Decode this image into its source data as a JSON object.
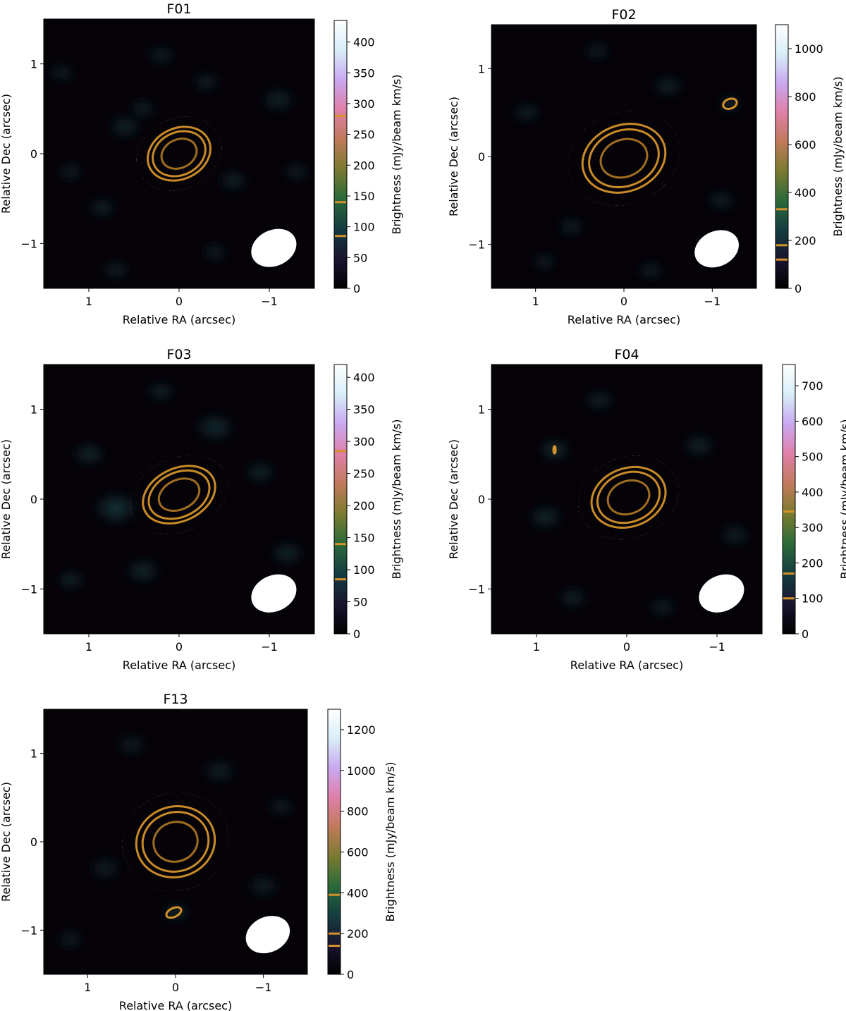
{
  "figure": {
    "xlabel": "Relative RA (arcsec)",
    "ylabel": "Relative Dec (arcsec)",
    "cbar_label": "Brightness (mJy/beam km/s)",
    "colormap": [
      "#000000",
      "#1a1530",
      "#143d40",
      "#2a6a3a",
      "#7a7a30",
      "#c07a5a",
      "#e07fa8",
      "#c9a8f0",
      "#d8eef8",
      "#ffffff"
    ],
    "contour_color": "#d4922a",
    "beam_color": "#ffffff"
  },
  "chart_data": [
    {
      "type": "heatmap",
      "title": "F01",
      "xlim": [
        1.5,
        -1.5
      ],
      "ylim": [
        -1.5,
        1.5
      ],
      "xticks": [
        1,
        0,
        -1
      ],
      "xtick_labels": [
        "1",
        "0",
        "−1"
      ],
      "yticks": [
        1,
        0,
        -1
      ],
      "ytick_labels": [
        "1",
        "0",
        "−1"
      ],
      "cbar_range": [
        0,
        435
      ],
      "cbar_ticks": [
        0,
        50,
        100,
        150,
        200,
        250,
        300,
        350,
        400
      ],
      "cbar_tick_labels": [
        "0",
        "50",
        "100",
        "150",
        "200",
        "250",
        "300",
        "350",
        "400"
      ],
      "contour_levels": [
        85,
        140,
        280
      ],
      "peak": 430,
      "source": {
        "x": 0.0,
        "y": 0.0,
        "a": 0.36,
        "b": 0.27,
        "pa": 25
      },
      "beam": {
        "x": -1.05,
        "y": -1.05,
        "a": 0.26,
        "b": 0.2,
        "pa": 25
      },
      "blobs": [
        [
          0.6,
          0.3,
          0.15,
          35
        ],
        [
          -0.6,
          -0.3,
          0.14,
          30
        ],
        [
          0.85,
          -0.6,
          0.13,
          32
        ],
        [
          -1.1,
          0.6,
          0.16,
          25
        ],
        [
          0.2,
          1.1,
          0.13,
          22
        ],
        [
          -0.3,
          0.8,
          0.13,
          20
        ],
        [
          1.3,
          0.9,
          0.12,
          18
        ],
        [
          0.7,
          -1.3,
          0.13,
          18
        ],
        [
          -1.3,
          -0.2,
          0.12,
          20
        ],
        [
          0.4,
          0.5,
          0.12,
          30
        ],
        [
          -0.4,
          -1.1,
          0.12,
          18
        ],
        [
          1.2,
          -0.2,
          0.12,
          20
        ]
      ],
      "extra_contours": []
    },
    {
      "type": "heatmap",
      "title": "F02",
      "xlim": [
        1.5,
        -1.5
      ],
      "ylim": [
        -1.5,
        1.5
      ],
      "xticks": [
        1,
        0,
        -1
      ],
      "xtick_labels": [
        "1",
        "0",
        "−1"
      ],
      "yticks": [
        1,
        0,
        -1
      ],
      "ytick_labels": [
        "1",
        "0",
        "−1"
      ],
      "cbar_range": [
        0,
        1100
      ],
      "cbar_ticks": [
        0,
        200,
        400,
        600,
        800,
        1000
      ],
      "cbar_tick_labels": [
        "0",
        "200",
        "400",
        "600",
        "800",
        "1000"
      ],
      "contour_levels": [
        120,
        180,
        330
      ],
      "peak": 1100,
      "source": {
        "x": 0.0,
        "y": -0.02,
        "a": 0.48,
        "b": 0.36,
        "pa": 20
      },
      "beam": {
        "x": -1.05,
        "y": -1.05,
        "a": 0.26,
        "b": 0.2,
        "pa": 25
      },
      "blobs": [
        [
          -1.2,
          0.6,
          0.11,
          150
        ],
        [
          0.6,
          -0.8,
          0.13,
          60
        ],
        [
          -0.5,
          0.8,
          0.15,
          60
        ],
        [
          1.1,
          0.5,
          0.14,
          55
        ],
        [
          -1.1,
          -0.5,
          0.14,
          55
        ],
        [
          0.3,
          1.2,
          0.13,
          45
        ],
        [
          0.9,
          -1.2,
          0.12,
          40
        ],
        [
          -0.3,
          -1.3,
          0.13,
          40
        ]
      ],
      "extra_contours": [
        {
          "x": -1.2,
          "y": 0.6,
          "a": 0.08,
          "b": 0.055,
          "pa": 20
        }
      ]
    },
    {
      "type": "heatmap",
      "title": "F03",
      "xlim": [
        1.5,
        -1.5
      ],
      "ylim": [
        -1.5,
        1.5
      ],
      "xticks": [
        1,
        0,
        -1
      ],
      "xtick_labels": [
        "1",
        "0",
        "−1"
      ],
      "yticks": [
        1,
        0,
        -1
      ],
      "ytick_labels": [
        "1",
        "0",
        "−1"
      ],
      "cbar_range": [
        0,
        420
      ],
      "cbar_ticks": [
        0,
        50,
        100,
        150,
        200,
        250,
        300,
        350,
        400
      ],
      "cbar_tick_labels": [
        "0",
        "50",
        "100",
        "150",
        "200",
        "250",
        "300",
        "350",
        "400"
      ],
      "contour_levels": [
        85,
        140,
        285
      ],
      "peak": 420,
      "source": {
        "x": 0.0,
        "y": 0.05,
        "a": 0.42,
        "b": 0.28,
        "pa": 25
      },
      "beam": {
        "x": -1.05,
        "y": -1.05,
        "a": 0.26,
        "b": 0.2,
        "pa": 25
      },
      "blobs": [
        [
          0.7,
          -0.1,
          0.2,
          75
        ],
        [
          -0.4,
          0.8,
          0.18,
          45
        ],
        [
          1.0,
          0.5,
          0.15,
          40
        ],
        [
          -1.2,
          -0.6,
          0.15,
          40
        ],
        [
          0.4,
          -0.8,
          0.16,
          40
        ],
        [
          -0.9,
          0.3,
          0.14,
          35
        ],
        [
          1.2,
          -0.9,
          0.13,
          30
        ],
        [
          0.2,
          1.2,
          0.13,
          30
        ]
      ],
      "extra_contours": []
    },
    {
      "type": "heatmap",
      "title": "F04",
      "xlim": [
        1.5,
        -1.5
      ],
      "ylim": [
        -1.5,
        1.5
      ],
      "xticks": [
        1,
        0,
        -1
      ],
      "xtick_labels": [
        "1",
        "0",
        "−1"
      ],
      "yticks": [
        1,
        0,
        -1
      ],
      "ytick_labels": [
        "1",
        "0",
        "−1"
      ],
      "cbar_range": [
        0,
        760
      ],
      "cbar_ticks": [
        0,
        100,
        200,
        300,
        400,
        500,
        600,
        700
      ],
      "cbar_tick_labels": [
        "0",
        "100",
        "200",
        "300",
        "400",
        "500",
        "600",
        "700"
      ],
      "contour_levels": [
        100,
        170,
        345
      ],
      "peak": 760,
      "source": {
        "x": -0.02,
        "y": 0.02,
        "a": 0.42,
        "b": 0.31,
        "pa": 20
      },
      "beam": {
        "x": -1.05,
        "y": -1.05,
        "a": 0.26,
        "b": 0.2,
        "pa": 25
      },
      "blobs": [
        [
          0.8,
          0.55,
          0.14,
          110
        ],
        [
          0.9,
          -0.2,
          0.16,
          70
        ],
        [
          -0.8,
          0.6,
          0.15,
          55
        ],
        [
          0.3,
          1.1,
          0.14,
          45
        ],
        [
          -1.2,
          -0.4,
          0.14,
          45
        ],
        [
          0.6,
          -1.1,
          0.14,
          40
        ],
        [
          -0.4,
          -1.2,
          0.13,
          35
        ]
      ],
      "extra_contours": [
        {
          "x": 0.8,
          "y": 0.55,
          "a": 0.012,
          "b": 0.04,
          "pa": 0
        }
      ]
    },
    {
      "type": "heatmap",
      "title": "F13",
      "xlim": [
        1.5,
        -1.5
      ],
      "ylim": [
        -1.5,
        1.5
      ],
      "xticks": [
        1,
        0,
        -1
      ],
      "xtick_labels": [
        "1",
        "0",
        "−1"
      ],
      "yticks": [
        1,
        0,
        -1
      ],
      "ytick_labels": [
        "1",
        "0",
        "−1"
      ],
      "cbar_range": [
        0,
        1300
      ],
      "cbar_ticks": [
        0,
        200,
        400,
        600,
        800,
        1000,
        1200
      ],
      "cbar_tick_labels": [
        "0",
        "200",
        "400",
        "600",
        "800",
        "1000",
        "1200"
      ],
      "contour_levels": [
        140,
        200,
        390
      ],
      "peak": 1300,
      "source": {
        "x": 0.0,
        "y": 0.0,
        "a": 0.45,
        "b": 0.38,
        "pa": 15
      },
      "beam": {
        "x": -1.05,
        "y": -1.05,
        "a": 0.26,
        "b": 0.2,
        "pa": 25
      },
      "blobs": [
        [
          0.0,
          -0.8,
          0.12,
          170
        ],
        [
          -0.5,
          0.8,
          0.16,
          60
        ],
        [
          0.8,
          -0.3,
          0.15,
          55
        ],
        [
          -1.0,
          -0.5,
          0.15,
          55
        ],
        [
          0.5,
          1.1,
          0.14,
          45
        ],
        [
          1.2,
          -1.1,
          0.13,
          40
        ],
        [
          -1.2,
          0.4,
          0.13,
          40
        ]
      ],
      "extra_contours": [
        {
          "x": 0.02,
          "y": -0.8,
          "a": 0.09,
          "b": 0.05,
          "pa": 25
        }
      ]
    }
  ]
}
